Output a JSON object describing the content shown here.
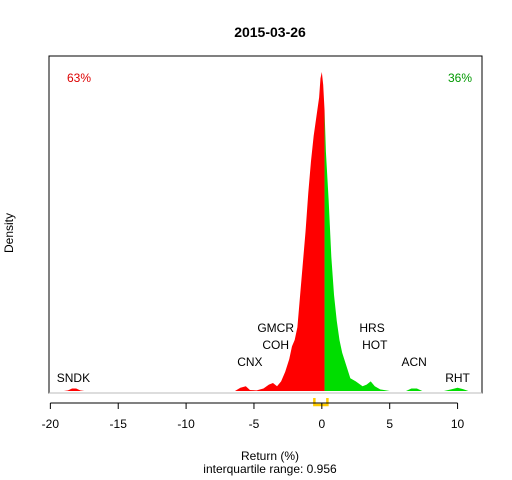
{
  "chart_data": {
    "type": "area",
    "title": "2015-03-26",
    "xlabel": "Return (%)",
    "ylabel": "Density",
    "subtitle": "interquartile range: 0.956",
    "xlim": [
      -20.1,
      11.8
    ],
    "ylim": [
      0,
      1
    ],
    "xticks": [
      -20,
      -15,
      -10,
      -5,
      0,
      5,
      10
    ],
    "xtick_labels": [
      "-20",
      "-15",
      "-10",
      "-5",
      "0",
      "5",
      "10"
    ],
    "split_at": 0.2,
    "negative_share_label": "63%",
    "positive_share_label": "36%",
    "colors": {
      "negative": "#ff0000",
      "positive": "#00dd00",
      "iqr": "#ffcc00",
      "pct_negative": "#dd0000",
      "pct_positive": "#009900"
    },
    "density": {
      "x": [
        -19.0,
        -18.7,
        -18.4,
        -18.1,
        -17.8,
        -17.5,
        -15,
        -10,
        -6.4,
        -6.0,
        -5.6,
        -5.3,
        -4.8,
        -4.3,
        -3.9,
        -3.6,
        -3.3,
        -3.0,
        -2.7,
        -2.4,
        -2.2,
        -2.0,
        -1.8,
        -1.6,
        -1.4,
        -1.2,
        -1.0,
        -0.8,
        -0.6,
        -0.4,
        -0.2,
        -0.1,
        0.0,
        0.1,
        0.2,
        0.3,
        0.5,
        0.7,
        0.9,
        1.1,
        1.3,
        1.5,
        1.8,
        2.1,
        2.5,
        3.0,
        3.3,
        3.6,
        3.9,
        4.3,
        5.0,
        6.2,
        6.6,
        7.0,
        7.4,
        9.0,
        9.6,
        10.0,
        10.4,
        10.8
      ],
      "y": [
        0,
        0.002,
        0.008,
        0.008,
        0.002,
        0,
        0,
        0,
        0,
        0.01,
        0.015,
        0.003,
        0.002,
        0.008,
        0.02,
        0.025,
        0.015,
        0.03,
        0.06,
        0.1,
        0.14,
        0.16,
        0.2,
        0.3,
        0.4,
        0.5,
        0.62,
        0.72,
        0.8,
        0.86,
        0.92,
        0.98,
        1.0,
        0.96,
        0.88,
        0.75,
        0.6,
        0.42,
        0.3,
        0.22,
        0.16,
        0.12,
        0.08,
        0.04,
        0.03,
        0.015,
        0.02,
        0.03,
        0.015,
        0.005,
        0,
        0,
        0.008,
        0.008,
        0,
        0,
        0.006,
        0.01,
        0.006,
        0
      ]
    },
    "annotations": [
      {
        "text": "SNDK",
        "x": -18.3,
        "row": 0
      },
      {
        "text": "CNX",
        "x": -5.3,
        "row": 1
      },
      {
        "text": "COH",
        "x": -3.4,
        "row": 2
      },
      {
        "text": "GMCR",
        "x": -3.4,
        "row": 3
      },
      {
        "text": "HOT",
        "x": 3.9,
        "row": 2
      },
      {
        "text": "HRS",
        "x": 3.7,
        "row": 3
      },
      {
        "text": "ACN",
        "x": 6.8,
        "row": 1
      },
      {
        "text": "RHT",
        "x": 10.0,
        "row": 0
      }
    ],
    "iqr": [
      -0.55,
      0.41
    ]
  }
}
